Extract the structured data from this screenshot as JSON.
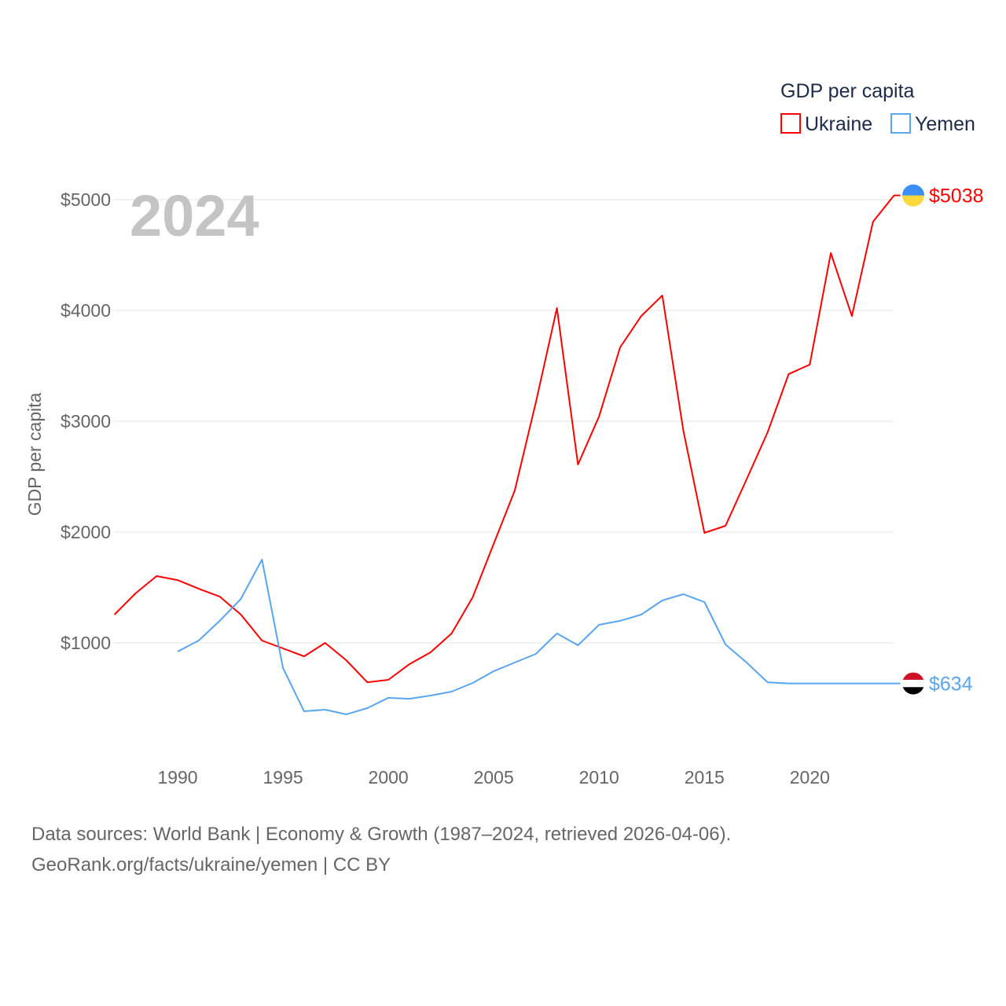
{
  "chart_data": {
    "type": "line",
    "title": "GDP per capita",
    "year_label": "2024",
    "xlabel": "",
    "ylabel": "GDP per capita",
    "xlim": [
      1987,
      2024
    ],
    "ylim": [
      0,
      5300
    ],
    "grid": true,
    "legend_placement": "top-right",
    "x_ticks": [
      "1990",
      "1995",
      "2000",
      "2005",
      "2010",
      "2015",
      "2020"
    ],
    "y_ticks": [
      {
        "value": 1000,
        "label": "$1000"
      },
      {
        "value": 2000,
        "label": "$2000"
      },
      {
        "value": 3000,
        "label": "$3000"
      },
      {
        "value": 4000,
        "label": "$4000"
      },
      {
        "value": 5000,
        "label": "$5000"
      }
    ],
    "series": [
      {
        "name": "Ukraine",
        "color": "#ff0000",
        "end_label": "$5038",
        "flag_colors": [
          "#3a8ef6",
          "#ffd83d"
        ],
        "x": [
          1987,
          1988,
          1989,
          1990,
          1991,
          1992,
          1993,
          1994,
          1995,
          1996,
          1997,
          1998,
          1999,
          2000,
          2001,
          2002,
          2003,
          2004,
          2005,
          2006,
          2007,
          2008,
          2009,
          2010,
          2011,
          2012,
          2013,
          2014,
          2015,
          2016,
          2017,
          2018,
          2019,
          2020,
          2021,
          2022,
          2023,
          2024
        ],
        "values": [
          1255,
          1447,
          1603,
          1567,
          1489,
          1418,
          1255,
          1021,
          950,
          879,
          1000,
          844,
          645,
          667,
          808,
          915,
          1085,
          1411,
          1894,
          2376,
          3170,
          4021,
          2610,
          3043,
          3667,
          3950,
          4135,
          2915,
          1993,
          2057,
          2475,
          2901,
          3426,
          3511,
          4518,
          3950,
          4801,
          5038
        ]
      },
      {
        "name": "Yemen",
        "color": "#5aa5ef",
        "end_label": "$634",
        "flag_colors": [
          "#ce1126",
          "#ffffff",
          "#000000"
        ],
        "x": [
          1990,
          1991,
          1992,
          1993,
          1994,
          1995,
          1996,
          1997,
          1998,
          1999,
          2000,
          2001,
          2002,
          2003,
          2004,
          2005,
          2006,
          2007,
          2008,
          2009,
          2010,
          2011,
          2012,
          2013,
          2014,
          2015,
          2016,
          2017,
          2018,
          2019,
          2020,
          2021,
          2022,
          2023,
          2024
        ],
        "values": [
          922,
          1021,
          1199,
          1397,
          1752,
          773,
          383,
          397,
          355,
          411,
          504,
          496,
          525,
          560,
          638,
          745,
          823,
          901,
          1085,
          979,
          1163,
          1199,
          1255,
          1383,
          1440,
          1369,
          986,
          823,
          645,
          634,
          634,
          634,
          634,
          634,
          634
        ]
      }
    ]
  },
  "footer": {
    "line1": "Data sources: World Bank | Economy & Growth (1987–2024, retrieved 2026-04-06).",
    "line2": "GeoRank.org/facts/ukraine/yemen | CC BY"
  }
}
